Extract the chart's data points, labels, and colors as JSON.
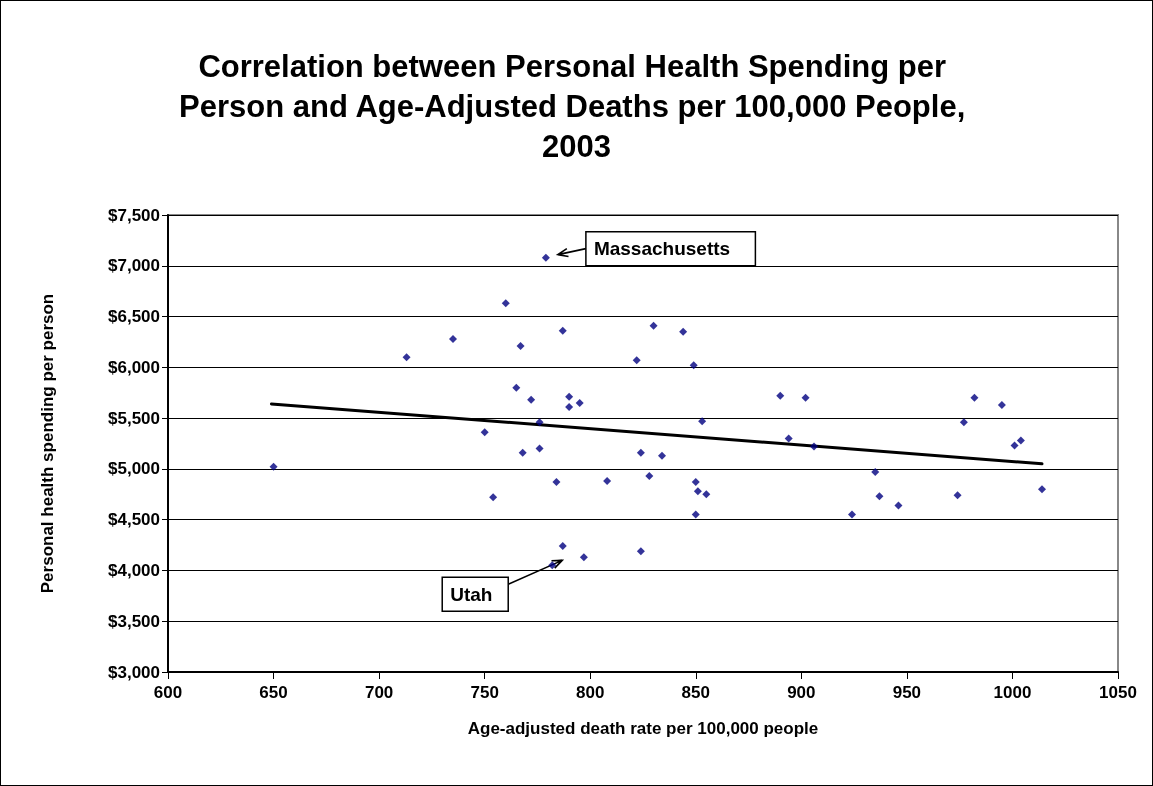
{
  "chart_data": {
    "type": "scatter",
    "title": "Correlation between Personal Health Spending per Person and Age-Adjusted Deaths per 100,000 People, 2003",
    "xlabel": "Age-adjusted death rate per 100,000 people",
    "ylabel": "Personal health spending per person",
    "marker": "diamond",
    "grid": "y",
    "xlim": [
      600,
      1050
    ],
    "xticks": [
      600,
      650,
      700,
      750,
      800,
      850,
      900,
      950,
      1000,
      1050
    ],
    "ylim": [
      3000,
      7500
    ],
    "yticks": [
      {
        "value": 3000,
        "label": "$3,000"
      },
      {
        "value": 3500,
        "label": "$3,500"
      },
      {
        "value": 4000,
        "label": "$4,000"
      },
      {
        "value": 4500,
        "label": "$4,500"
      },
      {
        "value": 5000,
        "label": "$5,000"
      },
      {
        "value": 5500,
        "label": "$5,500"
      },
      {
        "value": 6000,
        "label": "$6,000"
      },
      {
        "value": 6500,
        "label": "$6,500"
      },
      {
        "value": 7000,
        "label": "$7,000"
      },
      {
        "value": 7500,
        "label": "$7,500"
      }
    ],
    "series": [
      {
        "color": "#000080",
        "x": [
          650,
          713,
          735,
          760,
          750,
          754,
          779,
          787,
          767,
          822,
          830,
          844,
          849,
          765,
          772,
          790,
          790,
          795,
          776,
          768,
          776,
          853,
          890,
          902,
          894,
          906,
          824,
          834,
          784,
          808,
          828,
          850,
          851,
          855,
          850,
          787,
          797,
          782,
          824,
          982,
          995,
          977,
          1001,
          1004,
          935,
          937,
          946,
          924,
          974,
          1014
        ],
        "values": [
          5020,
          6100,
          6280,
          6630,
          5360,
          4720,
          7080,
          6360,
          6210,
          6070,
          6410,
          6350,
          6020,
          5800,
          5680,
          5710,
          5610,
          5650,
          5460,
          5160,
          5200,
          5470,
          5720,
          5700,
          5300,
          5220,
          5160,
          5130,
          4870,
          4880,
          4930,
          4870,
          4780,
          4750,
          4550,
          4240,
          4130,
          4050,
          4190,
          5700,
          5630,
          5460,
          5230,
          5280,
          4970,
          4730,
          4640,
          4550,
          4740,
          4800
        ]
      },
      {
        "type": "line",
        "marker": "none",
        "color": "#000000",
        "x": [
          649,
          1014
        ],
        "values": [
          5640,
          5050
        ]
      }
    ],
    "annotations": [
      {
        "text": "Massachusetts",
        "x": 779,
        "y": 7080
      },
      {
        "text": "Utah",
        "x": 782,
        "y": 4050
      }
    ]
  }
}
